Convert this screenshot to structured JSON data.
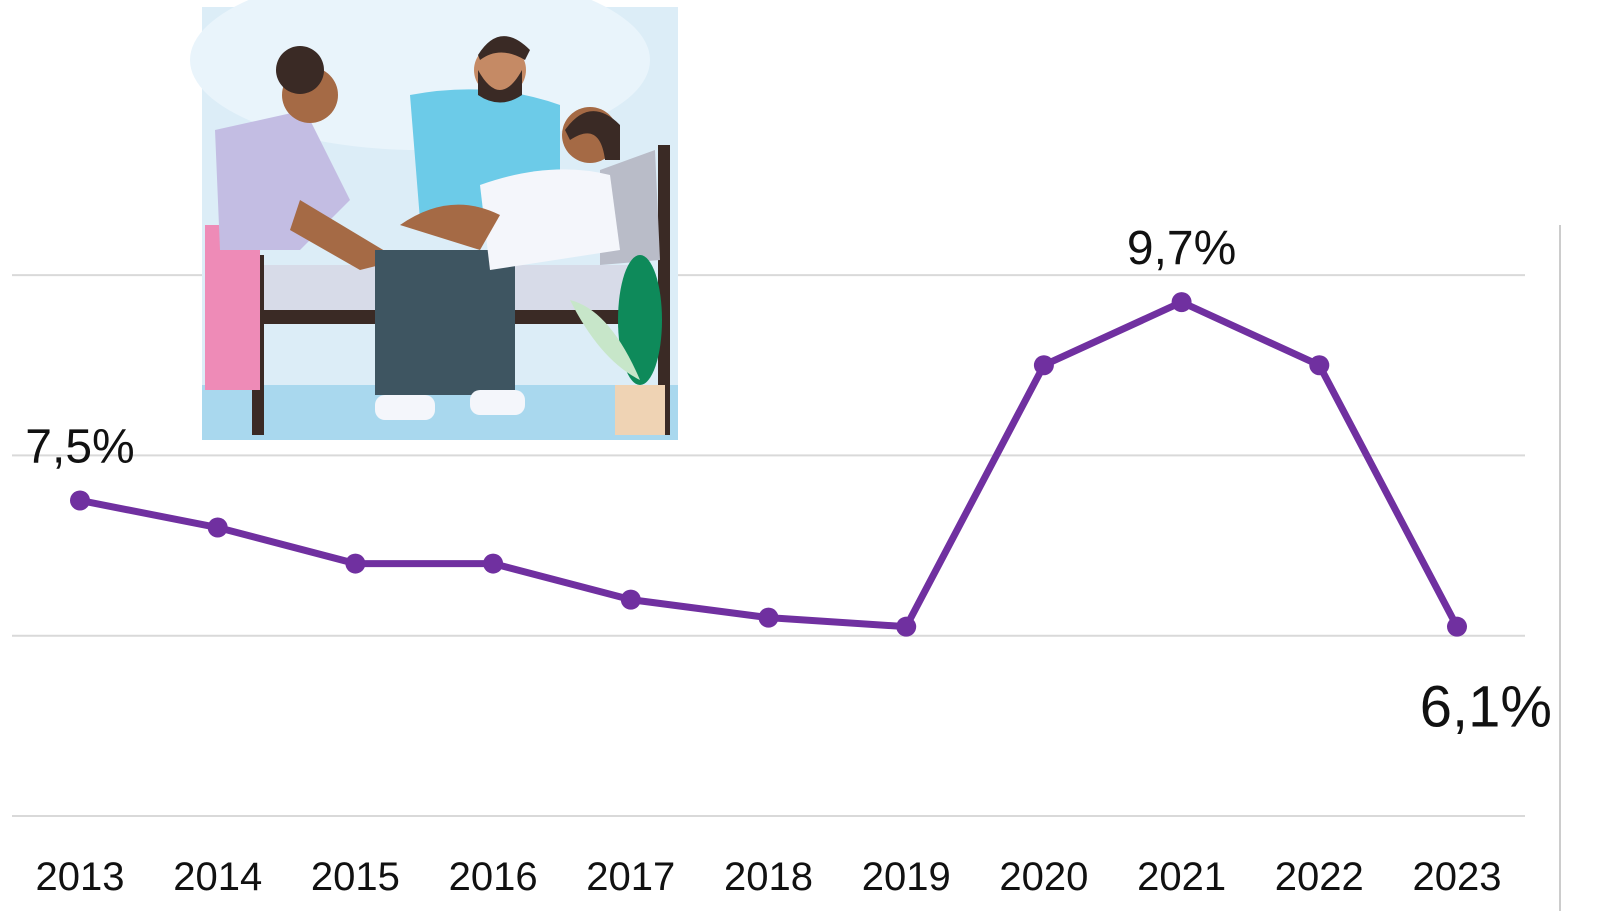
{
  "chart_data": {
    "type": "line",
    "categories": [
      "2013",
      "2014",
      "2015",
      "2016",
      "2017",
      "2018",
      "2019",
      "2020",
      "2021",
      "2022",
      "2023"
    ],
    "series": [
      {
        "color": "#7030a0",
        "values": [
          7.5,
          7.2,
          6.8,
          6.8,
          6.4,
          6.2,
          6.1,
          9.0,
          9.7,
          9.0,
          6.1
        ],
        "value_labels": [
          "7,5%",
          null,
          null,
          null,
          null,
          null,
          null,
          null,
          "9,7%",
          null,
          "6,1%"
        ]
      }
    ],
    "ylim": [
      4,
      10.5
    ],
    "yticks": [
      4,
      6,
      8,
      10
    ],
    "grid": true
  }
}
